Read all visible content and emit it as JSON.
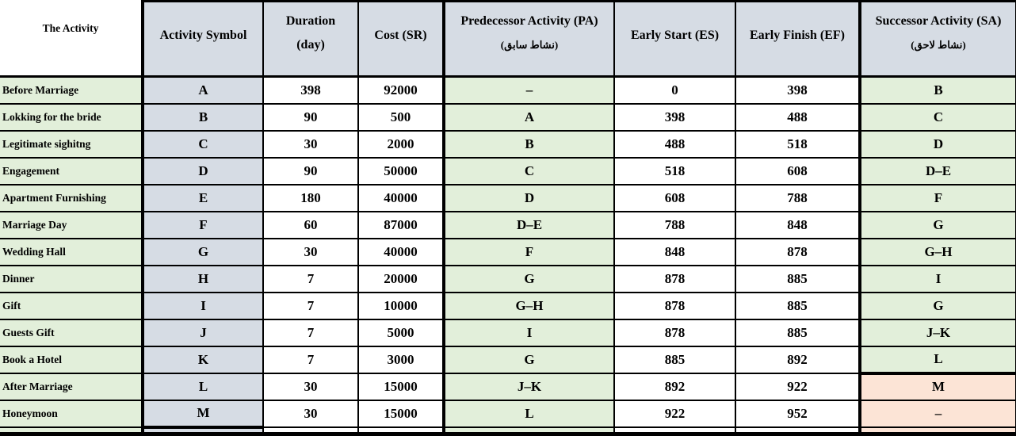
{
  "colors": {
    "cell_green": "#e2efda",
    "cell_bluegray": "#d6dce4",
    "cell_orange": "#fce4d6",
    "cell_white": "#ffffff",
    "border": "#000000"
  },
  "table": {
    "headers": {
      "activity": "The Activity",
      "symbol": "Activity Symbol",
      "duration_l1": "Duration",
      "duration_l2": "(day)",
      "cost": "Cost (SR)",
      "predecessor_l1": "Predecessor Activity (PA)",
      "predecessor_l2": "(نشاط سابق)",
      "early_start": "Early Start (ES)",
      "early_finish": "Early Finish (EF)",
      "successor_l1": "Successor Activity (SA)",
      "successor_l2": "(نشاط لاحق)"
    },
    "rows": [
      {
        "activity": "Before Marriage",
        "symbol": "A",
        "duration": "398",
        "cost": "92000",
        "predecessor": "–",
        "early_start": "0",
        "early_finish": "398",
        "successor": "B",
        "successor_highlight": false,
        "successor_thick_top": false
      },
      {
        "activity": "Lokking for the bride",
        "symbol": "B",
        "duration": "90",
        "cost": "500",
        "predecessor": "A",
        "early_start": "398",
        "early_finish": "488",
        "successor": "C",
        "successor_highlight": false,
        "successor_thick_top": false
      },
      {
        "activity": "Legitimate sighitng",
        "symbol": "C",
        "duration": "30",
        "cost": "2000",
        "predecessor": "B",
        "early_start": "488",
        "early_finish": "518",
        "successor": "D",
        "successor_highlight": false,
        "successor_thick_top": false
      },
      {
        "activity": "Engagement",
        "symbol": "D",
        "duration": "90",
        "cost": "50000",
        "predecessor": "C",
        "early_start": "518",
        "early_finish": "608",
        "successor": "D–E",
        "successor_highlight": false,
        "successor_thick_top": false
      },
      {
        "activity": "Apartment Furnishing",
        "symbol": "E",
        "duration": "180",
        "cost": "40000",
        "predecessor": "D",
        "early_start": "608",
        "early_finish": "788",
        "successor": "F",
        "successor_highlight": false,
        "successor_thick_top": false
      },
      {
        "activity": "Marriage Day",
        "symbol": "F",
        "duration": "60",
        "cost": "87000",
        "predecessor": "D–E",
        "early_start": "788",
        "early_finish": "848",
        "successor": "G",
        "successor_highlight": false,
        "successor_thick_top": false
      },
      {
        "activity": "Wedding Hall",
        "symbol": "G",
        "duration": "30",
        "cost": "40000",
        "predecessor": "F",
        "early_start": "848",
        "early_finish": "878",
        "successor": "G–H",
        "successor_highlight": false,
        "successor_thick_top": false
      },
      {
        "activity": "Dinner",
        "symbol": "H",
        "duration": "7",
        "cost": "20000",
        "predecessor": "G",
        "early_start": "878",
        "early_finish": "885",
        "successor": "I",
        "successor_highlight": false,
        "successor_thick_top": false
      },
      {
        "activity": "Gift",
        "symbol": "I",
        "duration": "7",
        "cost": "10000",
        "predecessor": "G–H",
        "early_start": "878",
        "early_finish": "885",
        "successor": "G",
        "successor_highlight": false,
        "successor_thick_top": false
      },
      {
        "activity": "Guests Gift",
        "symbol": "J",
        "duration": "7",
        "cost": "5000",
        "predecessor": "I",
        "early_start": "878",
        "early_finish": "885",
        "successor": "J–K",
        "successor_highlight": false,
        "successor_thick_top": false
      },
      {
        "activity": "Book a Hotel",
        "symbol": "K",
        "duration": "7",
        "cost": "3000",
        "predecessor": "G",
        "early_start": "885",
        "early_finish": "892",
        "successor": "L",
        "successor_highlight": false,
        "successor_thick_top": false
      },
      {
        "activity": "After Marriage",
        "symbol": "L",
        "duration": "30",
        "cost": "15000",
        "predecessor": "J–K",
        "early_start": "892",
        "early_finish": "922",
        "successor": "M",
        "successor_highlight": true,
        "successor_thick_top": true
      },
      {
        "activity": "Honeymoon",
        "symbol": "M",
        "duration": "30",
        "cost": "15000",
        "predecessor": "L",
        "early_start": "922",
        "early_finish": "952",
        "successor": "–",
        "successor_highlight": true,
        "successor_thick_top": false
      }
    ]
  }
}
